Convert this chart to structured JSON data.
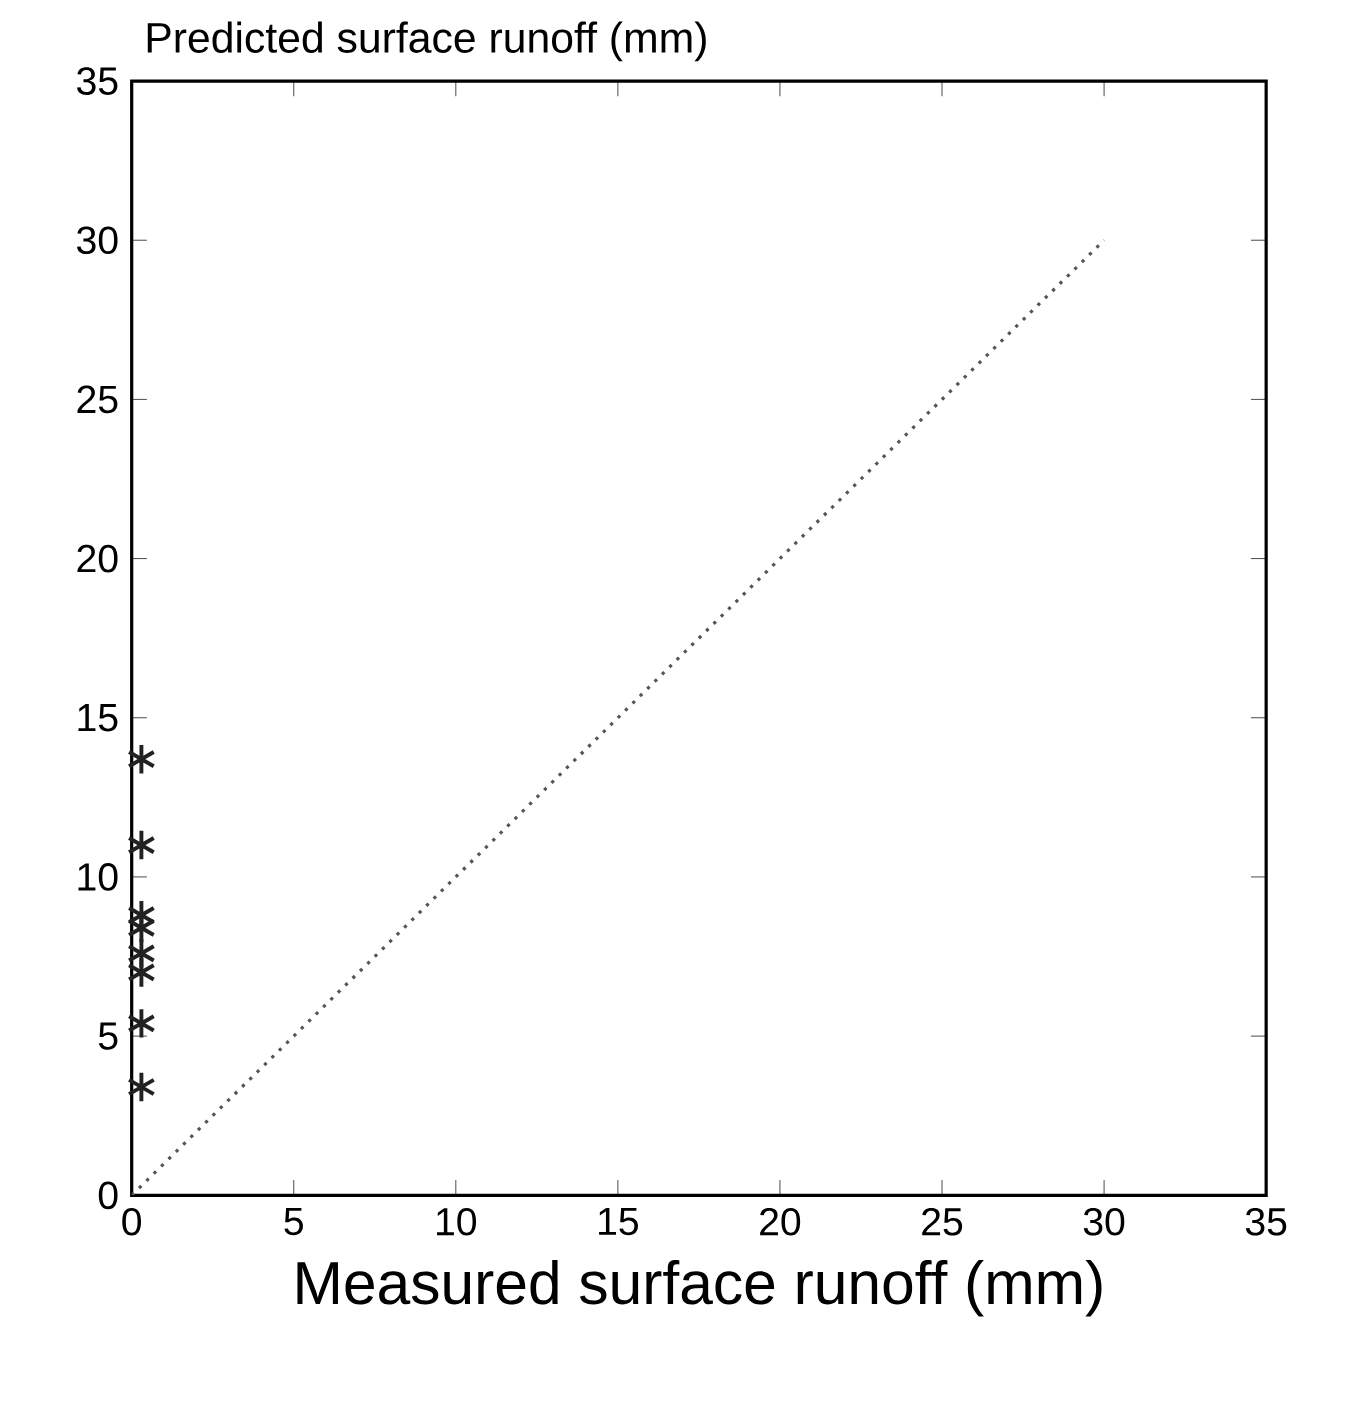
{
  "chart_data": {
    "type": "scatter",
    "ylabel": "Predicted surface runoff (mm)",
    "xlabel": "Measured surface runoff (mm)",
    "xlim": [
      0,
      35
    ],
    "ylim": [
      0,
      35
    ],
    "xticks": [
      0,
      5,
      10,
      15,
      20,
      25,
      30,
      35
    ],
    "yticks": [
      0,
      5,
      10,
      15,
      20,
      25,
      30,
      35
    ],
    "grid": false,
    "series": [
      {
        "marker": "cross",
        "color": "#222222",
        "x": [
          0.3,
          0.3,
          0.3,
          0.3,
          0.3,
          0.3,
          0.3,
          0.3
        ],
        "values": [
          13.7,
          11.0,
          8.8,
          8.4,
          7.6,
          7.0,
          5.4,
          3.4
        ]
      },
      {
        "type": "line",
        "marker": "none",
        "line_style": "dotted",
        "color": "#555555",
        "x": [
          0,
          30
        ],
        "values": [
          0,
          30
        ]
      }
    ]
  }
}
